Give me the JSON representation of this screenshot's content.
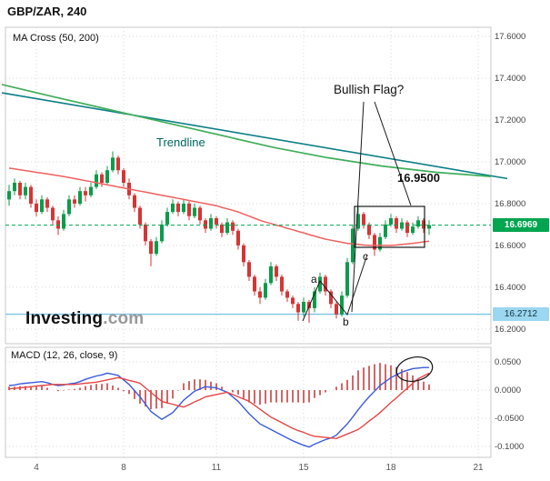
{
  "header": {
    "title": "GBP/ZAR, 240"
  },
  "watermark": {
    "bold": "Investing",
    "gray": ".com"
  },
  "chart_data": {
    "type": "candlestick",
    "symbol": "GBP/ZAR",
    "timeframe": "240",
    "x_tick_labels": [
      "4",
      "8",
      "11",
      "15",
      "18",
      "21"
    ],
    "x_tick_indices": [
      5,
      21,
      38,
      54,
      70,
      86
    ],
    "price_panel": {
      "indicator_label": "MA Cross (50, 200)",
      "ylim": [
        16.13,
        17.6435
      ],
      "yticks": [
        17.6,
        17.4,
        17.2,
        17.0,
        16.8,
        16.6,
        16.4,
        16.2
      ],
      "ytick_labels": [
        "17.6000",
        "17.4000",
        "17.2000",
        "17.0000",
        "16.8000",
        "16.6000",
        "16.4000",
        "16.2000"
      ],
      "last_price": 16.6969,
      "last_price_label": "16.6969",
      "support_price": 16.2712,
      "support_label": "16.2712",
      "candles": [
        [
          16.82,
          16.89,
          16.79,
          16.86
        ],
        [
          16.86,
          16.92,
          16.84,
          16.9
        ],
        [
          16.9,
          16.91,
          16.82,
          16.84
        ],
        [
          16.84,
          16.9,
          16.82,
          16.88
        ],
        [
          16.88,
          16.89,
          16.78,
          16.8
        ],
        [
          16.8,
          16.82,
          16.74,
          16.76
        ],
        [
          16.76,
          16.84,
          16.75,
          16.82
        ],
        [
          16.82,
          16.83,
          16.76,
          16.78
        ],
        [
          16.78,
          16.79,
          16.7,
          16.72
        ],
        [
          16.72,
          16.74,
          16.65,
          16.68
        ],
        [
          16.68,
          16.77,
          16.67,
          16.75
        ],
        [
          16.75,
          16.84,
          16.74,
          16.82
        ],
        [
          16.82,
          16.84,
          16.78,
          16.8
        ],
        [
          16.8,
          16.88,
          16.79,
          16.86
        ],
        [
          16.86,
          16.88,
          16.81,
          16.84
        ],
        [
          16.84,
          16.9,
          16.83,
          16.88
        ],
        [
          16.88,
          16.96,
          16.87,
          16.94
        ],
        [
          16.94,
          16.95,
          16.88,
          16.9
        ],
        [
          16.9,
          16.98,
          16.89,
          16.96
        ],
        [
          16.96,
          17.05,
          16.95,
          17.02
        ],
        [
          17.02,
          17.03,
          16.94,
          16.96
        ],
        [
          16.96,
          16.97,
          16.88,
          16.9
        ],
        [
          16.9,
          16.92,
          16.82,
          16.84
        ],
        [
          16.84,
          16.85,
          16.76,
          16.78
        ],
        [
          16.78,
          16.79,
          16.68,
          16.7
        ],
        [
          16.7,
          16.71,
          16.6,
          16.62
        ],
        [
          16.62,
          16.63,
          16.5,
          16.56
        ],
        [
          16.56,
          16.64,
          16.55,
          16.62
        ],
        [
          16.62,
          16.72,
          16.61,
          16.7
        ],
        [
          16.7,
          16.78,
          16.69,
          16.76
        ],
        [
          16.76,
          16.82,
          16.75,
          16.8
        ],
        [
          16.8,
          16.81,
          16.74,
          16.76
        ],
        [
          16.76,
          16.82,
          16.75,
          16.8
        ],
        [
          16.8,
          16.81,
          16.72,
          16.74
        ],
        [
          16.74,
          16.8,
          16.73,
          16.78
        ],
        [
          16.78,
          16.79,
          16.7,
          16.72
        ],
        [
          16.72,
          16.73,
          16.66,
          16.68
        ],
        [
          16.68,
          16.75,
          16.67,
          16.73
        ],
        [
          16.73,
          16.74,
          16.68,
          16.7
        ],
        [
          16.7,
          16.71,
          16.64,
          16.66
        ],
        [
          16.66,
          16.73,
          16.65,
          16.71
        ],
        [
          16.71,
          16.72,
          16.65,
          16.67
        ],
        [
          16.67,
          16.68,
          16.58,
          16.6
        ],
        [
          16.6,
          16.61,
          16.5,
          16.52
        ],
        [
          16.52,
          16.53,
          16.43,
          16.45
        ],
        [
          16.45,
          16.46,
          16.36,
          16.38
        ],
        [
          16.38,
          16.4,
          16.32,
          16.35
        ],
        [
          16.35,
          16.44,
          16.34,
          16.42
        ],
        [
          16.42,
          16.52,
          16.41,
          16.5
        ],
        [
          16.5,
          16.51,
          16.43,
          16.45
        ],
        [
          16.45,
          16.46,
          16.36,
          16.38
        ],
        [
          16.38,
          16.39,
          16.33,
          16.35
        ],
        [
          16.35,
          16.36,
          16.3,
          16.32
        ],
        [
          16.32,
          16.33,
          16.24,
          16.28
        ],
        [
          16.28,
          16.35,
          16.26,
          16.33
        ],
        [
          16.33,
          16.34,
          16.23,
          16.3
        ],
        [
          16.3,
          16.4,
          16.28,
          16.38
        ],
        [
          16.38,
          16.47,
          16.37,
          16.45
        ],
        [
          16.45,
          16.46,
          16.36,
          16.38
        ],
        [
          16.38,
          16.39,
          16.3,
          16.32
        ],
        [
          16.32,
          16.33,
          16.25,
          16.27
        ],
        [
          16.27,
          16.38,
          16.26,
          16.36
        ],
        [
          16.36,
          16.54,
          16.35,
          16.52
        ],
        [
          16.52,
          16.7,
          16.51,
          16.68
        ],
        [
          16.68,
          16.79,
          16.67,
          16.75
        ],
        [
          16.75,
          16.76,
          16.68,
          16.7
        ],
        [
          16.7,
          16.71,
          16.63,
          16.65
        ],
        [
          16.65,
          16.66,
          16.55,
          16.58
        ],
        [
          16.58,
          16.66,
          16.57,
          16.64
        ],
        [
          16.64,
          16.72,
          16.63,
          16.7
        ],
        [
          16.7,
          16.75,
          16.69,
          16.73
        ],
        [
          16.73,
          16.74,
          16.66,
          16.68
        ],
        [
          16.68,
          16.73,
          16.67,
          16.71
        ],
        [
          16.71,
          16.72,
          16.64,
          16.66
        ],
        [
          16.66,
          16.71,
          16.65,
          16.69
        ],
        [
          16.69,
          16.74,
          16.68,
          16.72
        ],
        [
          16.72,
          16.73,
          16.66,
          16.68
        ],
        [
          16.68,
          16.72,
          16.65,
          16.697
        ]
      ],
      "ma50": [
        16.97,
        16.966,
        16.962,
        16.958,
        16.954,
        16.95,
        16.946,
        16.942,
        16.938,
        16.934,
        16.93,
        16.925,
        16.92,
        16.915,
        16.91,
        16.905,
        16.9,
        16.895,
        16.89,
        16.885,
        16.88,
        16.875,
        16.87,
        16.865,
        16.86,
        16.855,
        16.85,
        16.845,
        16.84,
        16.835,
        16.83,
        16.825,
        16.82,
        16.815,
        16.81,
        16.805,
        16.8,
        16.795,
        16.79,
        16.782,
        16.775,
        16.768,
        16.76,
        16.75,
        16.74,
        16.73,
        16.72,
        16.712,
        16.705,
        16.697,
        16.69,
        16.682,
        16.675,
        16.667,
        16.66,
        16.652,
        16.645,
        16.637,
        16.63,
        16.625,
        16.62,
        16.615,
        16.61,
        16.607,
        16.605,
        16.602,
        16.6,
        16.6,
        16.6,
        16.6,
        16.6,
        16.602,
        16.605,
        16.607,
        16.61,
        16.613,
        16.617,
        16.62
      ],
      "ma200_points": [
        [
          2,
          17.37
        ],
        [
          60,
          17.31
        ],
        [
          120,
          17.25
        ],
        [
          180,
          17.19
        ],
        [
          240,
          17.13
        ],
        [
          300,
          17.07
        ],
        [
          360,
          17.02
        ],
        [
          420,
          16.98
        ],
        [
          480,
          16.95
        ],
        [
          540,
          16.93
        ]
      ],
      "trendline_points": [
        [
          2,
          17.33
        ],
        [
          558,
          16.92
        ]
      ],
      "annotations": {
        "trendline_text": "Trendline",
        "bullish_flag_text": "Bullish Flag?",
        "target_text": "16.9500",
        "wave_labels": [
          "a",
          "b",
          "c"
        ]
      }
    },
    "macd_panel": {
      "label": "MACD (12, 26, close, 9)",
      "ylim": [
        -0.1194,
        0.0758
      ],
      "yticks": [
        0.05,
        0.0,
        -0.05,
        -0.1
      ],
      "ytick_labels": [
        "0.0500",
        "0.0000",
        "-0.0500",
        "-0.1000"
      ],
      "histogram": [
        0.006,
        0.006,
        0.007,
        0.007,
        0.007,
        0.007,
        0.007,
        0.004,
        0.0,
        -0.002,
        -0.001,
        0.001,
        0.002,
        0.004,
        0.007,
        0.009,
        0.011,
        0.011,
        0.012,
        0.008,
        0.004,
        -0.002,
        -0.007,
        -0.016,
        -0.024,
        -0.029,
        -0.034,
        -0.033,
        -0.032,
        -0.023,
        -0.015,
        -0.001,
        0.012,
        0.016,
        0.019,
        0.019,
        0.018,
        0.015,
        0.012,
        0.006,
        0.0,
        -0.004,
        -0.008,
        -0.015,
        -0.022,
        -0.024,
        -0.026,
        -0.024,
        -0.022,
        -0.022,
        -0.022,
        -0.022,
        -0.022,
        -0.022,
        -0.023,
        -0.022,
        -0.014,
        -0.009,
        -0.004,
        0.0,
        0.006,
        0.012,
        0.018,
        0.026,
        0.035,
        0.04,
        0.043,
        0.046,
        0.048,
        0.046,
        0.044,
        0.041,
        0.037,
        0.032,
        0.026,
        0.019,
        0.015,
        0.01
      ],
      "macd": [
        0.008,
        0.009,
        0.011,
        0.012,
        0.013,
        0.014,
        0.015,
        0.013,
        0.01,
        0.008,
        0.009,
        0.011,
        0.012,
        0.015,
        0.019,
        0.022,
        0.025,
        0.027,
        0.03,
        0.028,
        0.026,
        0.018,
        0.01,
        -0.001,
        -0.012,
        -0.025,
        -0.038,
        -0.045,
        -0.052,
        -0.046,
        -0.04,
        -0.029,
        -0.018,
        -0.01,
        -0.002,
        0.002,
        0.006,
        0.005,
        0.004,
        0.0,
        -0.004,
        -0.012,
        -0.02,
        -0.031,
        -0.042,
        -0.051,
        -0.06,
        -0.065,
        -0.07,
        -0.075,
        -0.08,
        -0.085,
        -0.09,
        -0.094,
        -0.098,
        -0.101,
        -0.096,
        -0.092,
        -0.088,
        -0.085,
        -0.08,
        -0.07,
        -0.06,
        -0.048,
        -0.035,
        -0.023,
        -0.012,
        -0.002,
        0.008,
        0.015,
        0.022,
        0.027,
        0.032,
        0.035,
        0.038,
        0.039,
        0.04,
        0.04
      ],
      "signal": [
        0.002,
        0.003,
        0.004,
        0.005,
        0.006,
        0.007,
        0.008,
        0.009,
        0.01,
        0.01,
        0.01,
        0.01,
        0.01,
        0.011,
        0.012,
        0.013,
        0.014,
        0.016,
        0.018,
        0.02,
        0.022,
        0.02,
        0.017,
        0.015,
        0.012,
        0.004,
        -0.004,
        -0.012,
        -0.02,
        -0.023,
        -0.025,
        -0.028,
        -0.03,
        -0.026,
        -0.021,
        -0.017,
        -0.012,
        -0.01,
        -0.008,
        -0.006,
        -0.004,
        -0.008,
        -0.012,
        -0.016,
        -0.02,
        -0.027,
        -0.034,
        -0.041,
        -0.048,
        -0.053,
        -0.058,
        -0.063,
        -0.068,
        -0.072,
        -0.075,
        -0.079,
        -0.082,
        -0.083,
        -0.084,
        -0.085,
        -0.086,
        -0.082,
        -0.078,
        -0.074,
        -0.07,
        -0.063,
        -0.055,
        -0.048,
        -0.04,
        -0.031,
        -0.022,
        -0.014,
        -0.005,
        0.003,
        0.012,
        0.02,
        0.025,
        0.03
      ]
    },
    "colors": {
      "up": "#0b9c4a",
      "down": "#d53535",
      "ma50": "#ef6060",
      "ma200": "#3fae5a",
      "trendline": "#0b7f86",
      "grid": "#d8d8d8",
      "border": "#c9c9c9",
      "axis_text": "#444444",
      "price_line": "#00a550",
      "support": "#7cc6e8",
      "hist": "#c94040",
      "macd_line": "#3b5bdb",
      "signal_line": "#e64545",
      "annotation": "#1a1a1a"
    }
  }
}
